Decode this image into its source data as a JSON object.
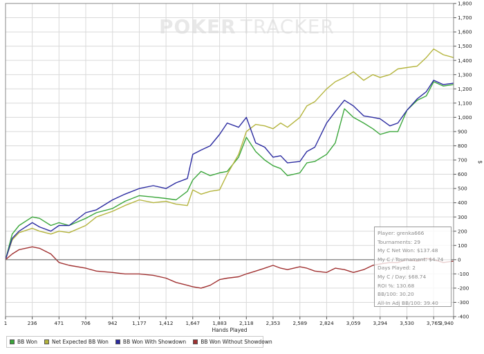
{
  "watermark": {
    "text_bold": "POKER",
    "text_light": "TRACKER"
  },
  "chart_data": {
    "type": "line",
    "title": "",
    "xlabel": "Hands Played",
    "ylabel": "$",
    "xlim": [
      1,
      3940
    ],
    "ylim": [
      -400,
      1800
    ],
    "grid": true,
    "x_ticks": [
      1,
      236,
      471,
      706,
      942,
      1177,
      1412,
      1647,
      1883,
      2118,
      2353,
      2589,
      2824,
      3059,
      3294,
      3530,
      3765,
      3940
    ],
    "x_tick_labels": [
      "1",
      "236",
      "471",
      "706",
      "942",
      "1,177",
      "1,412",
      "1,647",
      "1,883",
      "2,118",
      "2,353",
      "2,589",
      "2,824",
      "3,059",
      "3,294",
      "3,530",
      "3,765",
      "3,940"
    ],
    "y_ticks": [
      -400,
      -300,
      -200,
      -100,
      0,
      100,
      200,
      300,
      400,
      500,
      600,
      700,
      800,
      900,
      1000,
      1100,
      1200,
      1300,
      1400,
      1500,
      1600,
      1700,
      1800
    ],
    "y_tick_labels": [
      "-400",
      "-300",
      "-200",
      "-100",
      "0",
      "100",
      "200",
      "300",
      "400",
      "500",
      "600",
      "700",
      "800",
      "900",
      "1,000",
      "1,100",
      "1,200",
      "1,300",
      "1,400",
      "1,500",
      "1,600",
      "1,700",
      "1,800"
    ],
    "x": [
      1,
      60,
      120,
      236,
      300,
      400,
      471,
      560,
      706,
      800,
      942,
      1050,
      1177,
      1300,
      1412,
      1500,
      1600,
      1647,
      1720,
      1800,
      1883,
      1950,
      2050,
      2118,
      2200,
      2280,
      2353,
      2420,
      2480,
      2589,
      2650,
      2720,
      2824,
      2900,
      2980,
      3059,
      3150,
      3230,
      3294,
      3380,
      3450,
      3530,
      3620,
      3700,
      3765,
      3850,
      3940
    ],
    "series": [
      {
        "name": "BB Won",
        "color": "#3aa63a",
        "values": [
          0,
          180,
          240,
          300,
          290,
          240,
          260,
          240,
          290,
          330,
          360,
          410,
          450,
          440,
          430,
          420,
          480,
          560,
          620,
          590,
          610,
          620,
          720,
          860,
          760,
          700,
          660,
          640,
          590,
          610,
          680,
          690,
          740,
          820,
          1060,
          1000,
          960,
          920,
          880,
          900,
          900,
          1050,
          1120,
          1150,
          1250,
          1220,
          1230
        ]
      },
      {
        "name": "Net Expected BB Won",
        "color": "#b4b43c",
        "values": [
          0,
          140,
          190,
          220,
          200,
          180,
          200,
          190,
          240,
          300,
          340,
          380,
          420,
          400,
          410,
          390,
          380,
          490,
          460,
          480,
          490,
          600,
          740,
          900,
          950,
          940,
          920,
          960,
          930,
          1000,
          1080,
          1110,
          1200,
          1250,
          1280,
          1320,
          1260,
          1300,
          1280,
          1300,
          1340,
          1350,
          1360,
          1420,
          1480,
          1440,
          1420
        ]
      },
      {
        "name": "BB Won With Showdown",
        "color": "#2a2aa0",
        "values": [
          0,
          150,
          200,
          260,
          230,
          200,
          240,
          240,
          330,
          350,
          420,
          460,
          500,
          520,
          500,
          540,
          570,
          740,
          770,
          800,
          880,
          960,
          930,
          1000,
          820,
          790,
          720,
          730,
          680,
          690,
          760,
          790,
          960,
          1040,
          1120,
          1080,
          1010,
          1000,
          990,
          940,
          960,
          1050,
          1130,
          1180,
          1260,
          1230,
          1240
        ]
      },
      {
        "name": "BB Won Without Showdown",
        "color": "#a03030",
        "values": [
          0,
          40,
          70,
          90,
          80,
          40,
          -20,
          -40,
          -60,
          -80,
          -90,
          -100,
          -100,
          -110,
          -130,
          -160,
          -180,
          -190,
          -200,
          -180,
          -140,
          -130,
          -120,
          -100,
          -80,
          -60,
          -40,
          -60,
          -70,
          -50,
          -60,
          -80,
          -90,
          -60,
          -70,
          -90,
          -70,
          -40,
          -30,
          -20,
          -20,
          0,
          -10,
          10,
          0,
          -20,
          -10
        ]
      }
    ]
  },
  "info_box": {
    "lines": [
      "Player: grenka666",
      "Tournaments: 29",
      "My C Net Won: $137.48",
      "My C / Tournament: $4.74",
      "Days Played: 2",
      "My C / Day: $68.74",
      "ROI %: 130.68",
      "BB/100: 30.20",
      "All-In Adj BB/100: 39.40"
    ]
  }
}
